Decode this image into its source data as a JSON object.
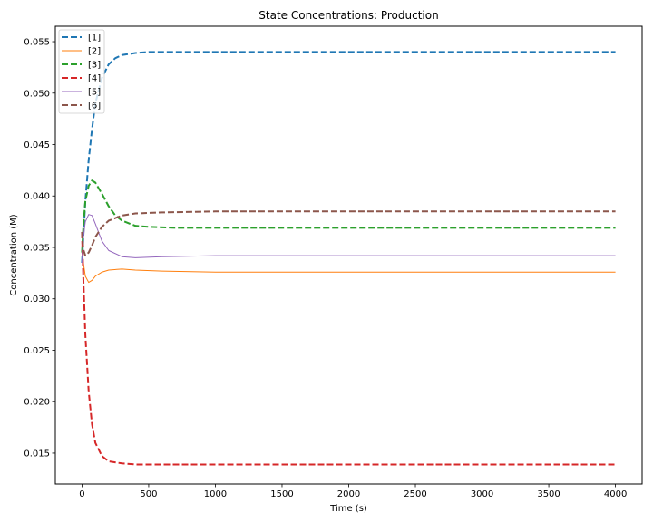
{
  "chart_data": {
    "type": "line",
    "title": "State Concentrations: Production",
    "xlabel": "Time (s)",
    "ylabel": "Concentration (M)",
    "xlim": [
      -200,
      4200
    ],
    "ylim": [
      0.012,
      0.0565
    ],
    "xticks": [
      0,
      500,
      1000,
      1500,
      2000,
      2500,
      3000,
      3500,
      4000
    ],
    "xtick_labels": [
      "0",
      "500",
      "1000",
      "1500",
      "2000",
      "2500",
      "3000",
      "3500",
      "4000"
    ],
    "yticks": [
      0.015,
      0.02,
      0.025,
      0.03,
      0.035,
      0.04,
      0.045,
      0.05,
      0.055
    ],
    "ytick_labels": [
      "0.015",
      "0.020",
      "0.025",
      "0.030",
      "0.035",
      "0.040",
      "0.045",
      "0.050",
      "0.055"
    ],
    "grid": false,
    "legend_position": "top-left",
    "series": [
      {
        "name": "[1]",
        "color": "#1f77b4",
        "style": "dashed",
        "points": [
          [
            0,
            0.0335
          ],
          [
            10,
            0.036
          ],
          [
            25,
            0.0395
          ],
          [
            50,
            0.0435
          ],
          [
            75,
            0.0465
          ],
          [
            100,
            0.049
          ],
          [
            150,
            0.0515
          ],
          [
            200,
            0.0528
          ],
          [
            250,
            0.0534
          ],
          [
            300,
            0.0537
          ],
          [
            400,
            0.0539
          ],
          [
            500,
            0.054
          ],
          [
            700,
            0.054
          ],
          [
            1000,
            0.054
          ],
          [
            4000,
            0.054
          ]
        ]
      },
      {
        "name": "[2]",
        "color": "#ff7f0e",
        "style": "solid",
        "points": [
          [
            0,
            0.0355
          ],
          [
            10,
            0.0335
          ],
          [
            25,
            0.0322
          ],
          [
            50,
            0.0316
          ],
          [
            75,
            0.0318
          ],
          [
            100,
            0.0322
          ],
          [
            150,
            0.0326
          ],
          [
            200,
            0.0328
          ],
          [
            300,
            0.0329
          ],
          [
            400,
            0.0328
          ],
          [
            600,
            0.0327
          ],
          [
            1000,
            0.0326
          ],
          [
            4000,
            0.0326
          ]
        ]
      },
      {
        "name": "[3]",
        "color": "#2ca02c",
        "style": "dashed",
        "points": [
          [
            0,
            0.0345
          ],
          [
            10,
            0.037
          ],
          [
            25,
            0.0395
          ],
          [
            50,
            0.041
          ],
          [
            75,
            0.0415
          ],
          [
            100,
            0.0413
          ],
          [
            150,
            0.0402
          ],
          [
            200,
            0.039
          ],
          [
            250,
            0.0381
          ],
          [
            300,
            0.0376
          ],
          [
            400,
            0.0371
          ],
          [
            500,
            0.037
          ],
          [
            700,
            0.0369
          ],
          [
            1000,
            0.0369
          ],
          [
            4000,
            0.0369
          ]
        ]
      },
      {
        "name": "[4]",
        "color": "#d62728",
        "style": "dashed",
        "points": [
          [
            0,
            0.0365
          ],
          [
            10,
            0.032
          ],
          [
            25,
            0.0265
          ],
          [
            50,
            0.021
          ],
          [
            75,
            0.0178
          ],
          [
            100,
            0.016
          ],
          [
            150,
            0.0147
          ],
          [
            200,
            0.0142
          ],
          [
            300,
            0.014
          ],
          [
            400,
            0.0139
          ],
          [
            600,
            0.0139
          ],
          [
            1000,
            0.0139
          ],
          [
            4000,
            0.0139
          ]
        ]
      },
      {
        "name": "[5]",
        "color": "#9467bd",
        "style": "solid",
        "points": [
          [
            0,
            0.0335
          ],
          [
            10,
            0.036
          ],
          [
            25,
            0.0375
          ],
          [
            50,
            0.0382
          ],
          [
            75,
            0.0381
          ],
          [
            100,
            0.0373
          ],
          [
            150,
            0.0356
          ],
          [
            200,
            0.0347
          ],
          [
            300,
            0.0341
          ],
          [
            400,
            0.034
          ],
          [
            600,
            0.0341
          ],
          [
            1000,
            0.0342
          ],
          [
            4000,
            0.0342
          ]
        ]
      },
      {
        "name": "[6]",
        "color": "#8c564b",
        "style": "dashed",
        "points": [
          [
            0,
            0.0365
          ],
          [
            10,
            0.0348
          ],
          [
            25,
            0.0342
          ],
          [
            50,
            0.0345
          ],
          [
            75,
            0.0352
          ],
          [
            100,
            0.036
          ],
          [
            150,
            0.037
          ],
          [
            200,
            0.0376
          ],
          [
            300,
            0.0381
          ],
          [
            400,
            0.0383
          ],
          [
            600,
            0.0384
          ],
          [
            1000,
            0.0385
          ],
          [
            4000,
            0.0385
          ]
        ]
      }
    ]
  }
}
